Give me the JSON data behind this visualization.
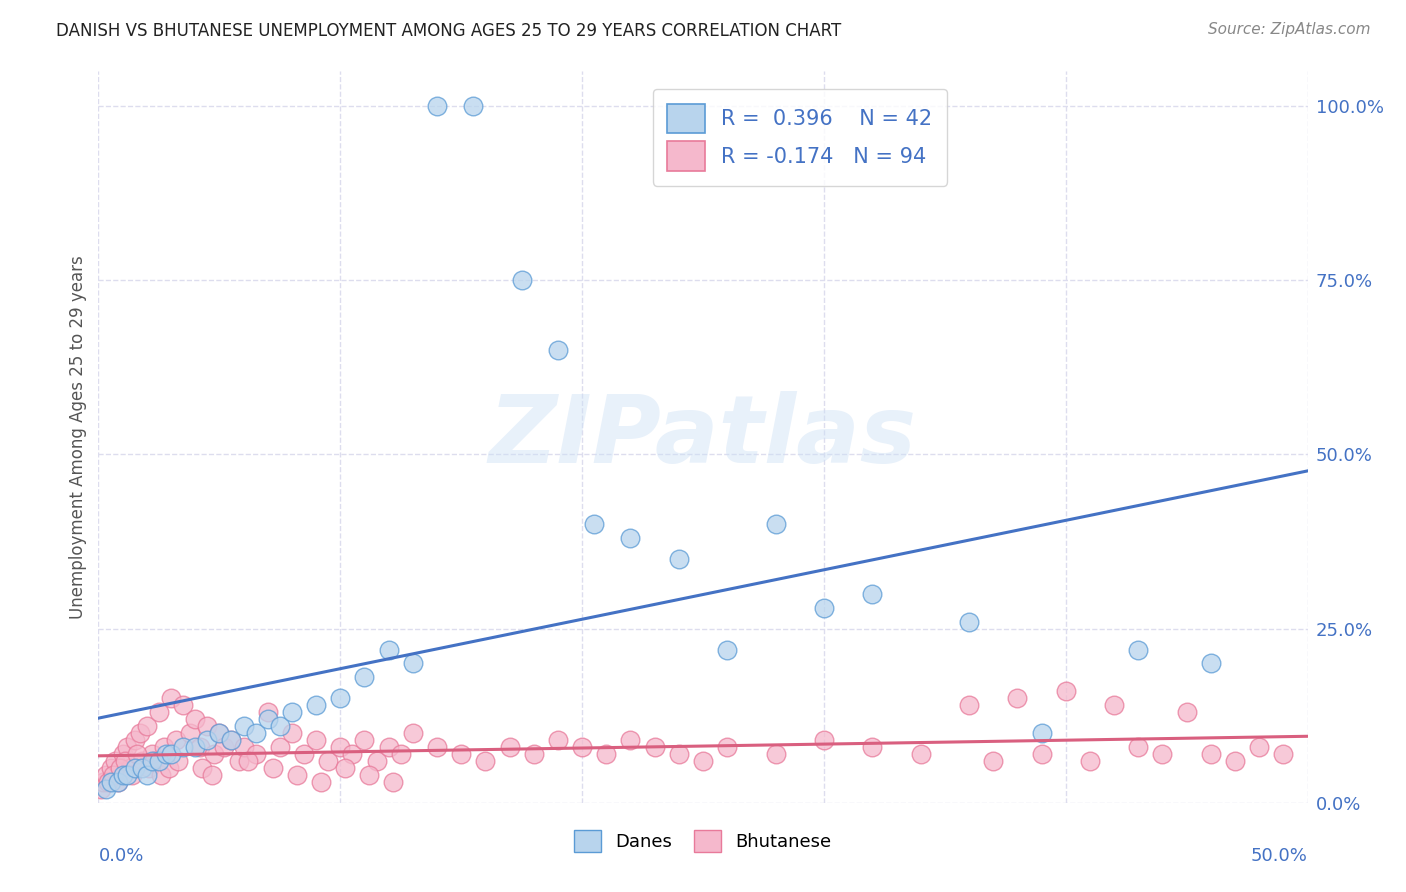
{
  "title": "DANISH VS BHUTANESE UNEMPLOYMENT AMONG AGES 25 TO 29 YEARS CORRELATION CHART",
  "source": "Source: ZipAtlas.com",
  "ylabel": "Unemployment Among Ages 25 to 29 years",
  "ytick_vals": [
    0,
    25,
    50,
    75,
    100
  ],
  "ytick_labels": [
    "0.0%",
    "25.0%",
    "50.0%",
    "75.0%",
    "100.0%"
  ],
  "xtick_labels": [
    "0.0%",
    "50.0%"
  ],
  "xlim": [
    0,
    50
  ],
  "ylim": [
    0,
    105
  ],
  "danes_fill_color": "#b8d4ed",
  "danes_edge_color": "#5b9bd5",
  "bhutanese_fill_color": "#f5b8cc",
  "bhutanese_edge_color": "#e87a9a",
  "danes_line_color": "#4472c4",
  "bhutanese_line_color": "#d95f7f",
  "danes_R": 0.396,
  "danes_N": 42,
  "bhutanese_R": -0.174,
  "bhutanese_N": 94,
  "danes_x": [
    0.3,
    0.5,
    0.8,
    1.0,
    1.2,
    1.5,
    1.8,
    2.0,
    2.2,
    2.5,
    2.8,
    3.0,
    3.5,
    4.0,
    4.5,
    5.0,
    5.5,
    6.0,
    6.5,
    7.0,
    7.5,
    8.0,
    9.0,
    10.0,
    11.0,
    12.0,
    13.0,
    14.0,
    15.5,
    17.5,
    19.0,
    20.5,
    22.0,
    24.0,
    26.0,
    28.0,
    30.0,
    32.0,
    36.0,
    39.0,
    43.0,
    46.0
  ],
  "danes_y": [
    2,
    3,
    3,
    4,
    4,
    5,
    5,
    4,
    6,
    6,
    7,
    7,
    8,
    8,
    9,
    10,
    9,
    11,
    10,
    12,
    11,
    13,
    14,
    15,
    18,
    22,
    20,
    100,
    100,
    75,
    65,
    40,
    38,
    35,
    22,
    40,
    28,
    30,
    26,
    10,
    22,
    20
  ],
  "bhutanese_x": [
    0.1,
    0.2,
    0.3,
    0.5,
    0.7,
    0.8,
    1.0,
    1.2,
    1.3,
    1.5,
    1.7,
    1.8,
    2.0,
    2.2,
    2.5,
    2.7,
    3.0,
    3.2,
    3.5,
    3.8,
    4.0,
    4.2,
    4.5,
    4.8,
    5.0,
    5.2,
    5.5,
    5.8,
    6.0,
    6.5,
    7.0,
    7.5,
    8.0,
    8.5,
    9.0,
    9.5,
    10.0,
    10.5,
    11.0,
    11.5,
    12.0,
    12.5,
    13.0,
    14.0,
    15.0,
    16.0,
    17.0,
    18.0,
    19.0,
    20.0,
    21.0,
    22.0,
    23.0,
    24.0,
    25.0,
    26.0,
    28.0,
    30.0,
    32.0,
    34.0,
    36.0,
    37.0,
    38.0,
    39.0,
    40.0,
    41.0,
    42.0,
    43.0,
    44.0,
    45.0,
    46.0,
    47.0,
    48.0,
    49.0,
    0.4,
    0.6,
    0.9,
    1.1,
    1.4,
    1.6,
    2.1,
    2.3,
    2.6,
    2.9,
    3.3,
    4.3,
    4.7,
    6.2,
    7.2,
    8.2,
    9.2,
    10.2,
    11.2,
    12.2
  ],
  "bhutanese_y": [
    2,
    3,
    4,
    5,
    6,
    3,
    7,
    8,
    5,
    9,
    10,
    6,
    11,
    7,
    13,
    8,
    15,
    9,
    14,
    10,
    12,
    8,
    11,
    7,
    10,
    8,
    9,
    6,
    8,
    7,
    13,
    8,
    10,
    7,
    9,
    6,
    8,
    7,
    9,
    6,
    8,
    7,
    10,
    8,
    7,
    6,
    8,
    7,
    9,
    8,
    7,
    9,
    8,
    7,
    6,
    8,
    7,
    9,
    8,
    7,
    14,
    6,
    15,
    7,
    16,
    6,
    14,
    8,
    7,
    13,
    7,
    6,
    8,
    7,
    3,
    4,
    5,
    6,
    4,
    7,
    5,
    6,
    4,
    5,
    6,
    5,
    4,
    6,
    5,
    4,
    3,
    5,
    4,
    3
  ],
  "watermark_text": "ZIPatlas",
  "background_color": "#ffffff",
  "grid_color": "#ddddee",
  "legend_r_color": "#4472c4",
  "legend_n_color": "#333333"
}
